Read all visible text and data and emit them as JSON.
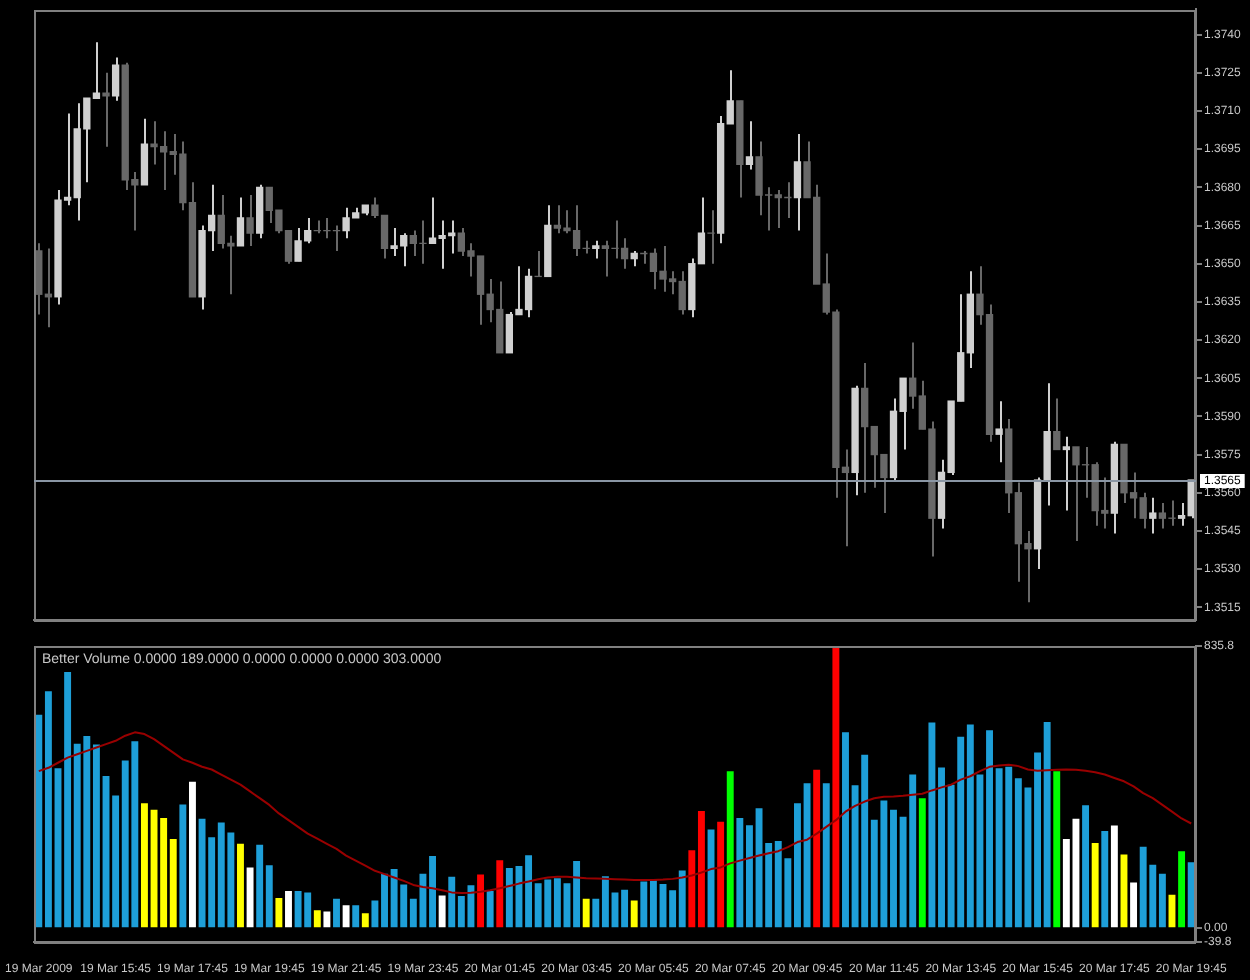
{
  "chart_data": [
    {
      "type": "candlestick",
      "categories": [
        null,
        null,
        null,
        null,
        null,
        null,
        null,
        null,
        null,
        null,
        null,
        null,
        null,
        null,
        null,
        null,
        null,
        null,
        null,
        null,
        null,
        null,
        null,
        null,
        null,
        null,
        null,
        null,
        null,
        null,
        null,
        null,
        null,
        null,
        null,
        null,
        null,
        null,
        null,
        null,
        null,
        null,
        null,
        null,
        null,
        null,
        null,
        null,
        null,
        null,
        null,
        null,
        null,
        null,
        null,
        null,
        null,
        null,
        null,
        null,
        null,
        null,
        null,
        null,
        null,
        null,
        null,
        null,
        null,
        null,
        null,
        null,
        null,
        null,
        null,
        null,
        null,
        null,
        null,
        null,
        null,
        null,
        null,
        null,
        null,
        null,
        null,
        null,
        null,
        null,
        null,
        null,
        null,
        null,
        null,
        null,
        null,
        null,
        null,
        null,
        null,
        null,
        null,
        null,
        null,
        null,
        null,
        null,
        null,
        null,
        null,
        null,
        null,
        null,
        null,
        null,
        null,
        null,
        null,
        null,
        null
      ],
      "colors": [
        "#686868",
        "#686868",
        "#d0d0d0",
        "#d0d0d0",
        "#d0d0d0",
        "#d0d0d0",
        "#d0d0d0",
        "#686868",
        "#d0d0d0",
        "#686868",
        "#686868",
        "#d0d0d0",
        "#686868",
        "#686868",
        "#686868",
        "#686868",
        "#686868",
        "#d0d0d0",
        "#d0d0d0",
        "#686868",
        "#686868",
        "#d0d0d0",
        "#686868",
        "#d0d0d0",
        "#686868",
        "#686868",
        "#686868",
        "#d0d0d0",
        "#d0d0d0",
        "#686868",
        "#686868",
        "#686868",
        "#d0d0d0",
        "#d0d0d0",
        "#d0d0d0",
        "#686868",
        "#686868",
        "#d0d0d0",
        "#d0d0d0",
        "#686868",
        "#686868",
        "#d0d0d0",
        "#d0d0d0",
        "#d0d0d0",
        "#686868",
        "#686868",
        "#686868",
        "#686868",
        "#686868",
        "#d0d0d0",
        "#d0d0d0",
        "#d0d0d0",
        "#686868",
        "#d0d0d0",
        "#686868",
        "#686868",
        "#686868",
        "#686868",
        "#d0d0d0",
        "#686868",
        "#686868",
        "#686868",
        "#d0d0d0",
        "#686868",
        "#686868",
        "#686868",
        "#686868",
        "#686868",
        "#d0d0d0",
        "#d0d0d0",
        "#686868",
        "#d0d0d0",
        "#d0d0d0",
        "#686868",
        "#d0d0d0",
        "#686868",
        "#686868",
        "#686868",
        "#686868",
        "#d0d0d0",
        "#686868",
        "#686868",
        "#686868",
        "#686868",
        "#686868",
        "#d0d0d0",
        "#686868",
        "#686868",
        "#686868",
        "#d0d0d0",
        "#d0d0d0",
        "#686868",
        "#686868",
        "#686868",
        "#d0d0d0",
        "#d0d0d0",
        "#d0d0d0",
        "#d0d0d0",
        "#686868",
        "#686868",
        "#d0d0d0",
        "#686868",
        "#686868",
        "#686868",
        "#d0d0d0",
        "#d0d0d0",
        "#686868",
        "#d0d0d0",
        "#686868",
        "#686868",
        "#686868",
        "#686868",
        "#d0d0d0",
        "#686868",
        "#686868",
        "#686868",
        "#d0d0d0",
        "#686868",
        "#686868",
        "#d0d0d0",
        "#d0d0d0"
      ],
      "ohlc": [
        [
          1.3655,
          1.3658,
          1.363,
          1.3638
        ],
        [
          1.3638,
          1.3656,
          1.3625,
          1.3637
        ],
        [
          1.3637,
          1.3679,
          1.3634,
          1.3675
        ],
        [
          1.3675,
          1.3709,
          1.3673,
          1.3676
        ],
        [
          1.3676,
          1.3713,
          1.3667,
          1.3703
        ],
        [
          1.3703,
          1.3715,
          1.3682,
          1.3715
        ],
        [
          1.3715,
          1.3737,
          1.3715,
          1.3717
        ],
        [
          1.3717,
          1.3725,
          1.3696,
          1.3716
        ],
        [
          1.3716,
          1.3731,
          1.3714,
          1.3728
        ],
        [
          1.3728,
          1.3729,
          1.3679,
          1.3683
        ],
        [
          1.3683,
          1.3686,
          1.3663,
          1.3681
        ],
        [
          1.3681,
          1.3707,
          1.3681,
          1.3697
        ],
        [
          1.3697,
          1.3706,
          1.3689,
          1.3696
        ],
        [
          1.3696,
          1.3702,
          1.3679,
          1.3694
        ],
        [
          1.3694,
          1.3701,
          1.3685,
          1.3693
        ],
        [
          1.3693,
          1.3698,
          1.3671,
          1.3674
        ],
        [
          1.3674,
          1.3682,
          1.3637,
          1.3637
        ],
        [
          1.3637,
          1.3665,
          1.3632,
          1.3663
        ],
        [
          1.3663,
          1.3681,
          1.3655,
          1.3669
        ],
        [
          1.3669,
          1.3677,
          1.3656,
          1.3658
        ],
        [
          1.3658,
          1.3661,
          1.3638,
          1.3657
        ],
        [
          1.3657,
          1.3676,
          1.3657,
          1.3668
        ],
        [
          1.3668,
          1.3677,
          1.3657,
          1.3662
        ],
        [
          1.3662,
          1.3681,
          1.366,
          1.368
        ],
        [
          1.368,
          1.368,
          1.3666,
          1.3671
        ],
        [
          1.3671,
          1.3671,
          1.3662,
          1.3663
        ],
        [
          1.3663,
          1.3663,
          1.365,
          1.3651
        ],
        [
          1.3651,
          1.3664,
          1.3651,
          1.3659
        ],
        [
          1.3659,
          1.3668,
          1.3658,
          1.3663
        ],
        [
          1.3663,
          1.3667,
          1.3662,
          1.3663
        ],
        [
          1.3663,
          1.3668,
          1.366,
          1.3663
        ],
        [
          1.3663,
          1.3665,
          1.3655,
          1.3663
        ],
        [
          1.3663,
          1.3672,
          1.366,
          1.3668
        ],
        [
          1.3668,
          1.3672,
          1.3668,
          1.367
        ],
        [
          1.367,
          1.3673,
          1.3669,
          1.3673
        ],
        [
          1.3673,
          1.3676,
          1.3668,
          1.3669
        ],
        [
          1.3669,
          1.3669,
          1.3652,
          1.3656
        ],
        [
          1.3656,
          1.3664,
          1.3653,
          1.3657
        ],
        [
          1.3657,
          1.3662,
          1.3649,
          1.3661
        ],
        [
          1.3661,
          1.3663,
          1.3653,
          1.3658
        ],
        [
          1.3658,
          1.3667,
          1.365,
          1.3658
        ],
        [
          1.3658,
          1.3676,
          1.3658,
          1.366
        ],
        [
          1.366,
          1.3667,
          1.3648,
          1.3661
        ],
        [
          1.3661,
          1.3667,
          1.3654,
          1.3662
        ],
        [
          1.3662,
          1.3664,
          1.3653,
          1.3655
        ],
        [
          1.3655,
          1.3658,
          1.3645,
          1.3653
        ],
        [
          1.3653,
          1.3653,
          1.3626,
          1.3638
        ],
        [
          1.3638,
          1.3644,
          1.3627,
          1.3632
        ],
        [
          1.3632,
          1.3643,
          1.3615,
          1.3615
        ],
        [
          1.3615,
          1.3631,
          1.3615,
          1.363
        ],
        [
          1.363,
          1.3649,
          1.363,
          1.3632
        ],
        [
          1.3632,
          1.3648,
          1.3629,
          1.3645
        ],
        [
          1.3645,
          1.3655,
          1.3645,
          1.3645
        ],
        [
          1.3645,
          1.3673,
          1.3645,
          1.3665
        ],
        [
          1.3665,
          1.3673,
          1.3662,
          1.3664
        ],
        [
          1.3664,
          1.3671,
          1.3662,
          1.3663
        ],
        [
          1.3663,
          1.3673,
          1.3653,
          1.3656
        ],
        [
          1.3656,
          1.3659,
          1.3654,
          1.3656
        ],
        [
          1.3656,
          1.3659,
          1.3652,
          1.3657
        ],
        [
          1.3657,
          1.3659,
          1.3645,
          1.3656
        ],
        [
          1.3656,
          1.3667,
          1.3652,
          1.3656
        ],
        [
          1.3656,
          1.366,
          1.3648,
          1.3652
        ],
        [
          1.3652,
          1.3655,
          1.3649,
          1.3654
        ],
        [
          1.3654,
          1.3655,
          1.365,
          1.3654
        ],
        [
          1.3654,
          1.3656,
          1.364,
          1.3647
        ],
        [
          1.3647,
          1.3657,
          1.3639,
          1.3644
        ],
        [
          1.3644,
          1.3647,
          1.3638,
          1.3643
        ],
        [
          1.3643,
          1.3647,
          1.363,
          1.3632
        ],
        [
          1.3632,
          1.3652,
          1.3629,
          1.365
        ],
        [
          1.365,
          1.3676,
          1.365,
          1.3662
        ],
        [
          1.3662,
          1.3671,
          1.365,
          1.3662
        ],
        [
          1.3662,
          1.3708,
          1.3658,
          1.3705
        ],
        [
          1.3705,
          1.3726,
          1.3705,
          1.3714
        ],
        [
          1.3714,
          1.3714,
          1.3676,
          1.3689
        ],
        [
          1.3689,
          1.3706,
          1.3687,
          1.3692
        ],
        [
          1.3692,
          1.3698,
          1.3669,
          1.3677
        ],
        [
          1.3677,
          1.368,
          1.3663,
          1.3677
        ],
        [
          1.3677,
          1.3679,
          1.3664,
          1.3676
        ],
        [
          1.3676,
          1.3682,
          1.3668,
          1.3676
        ],
        [
          1.3676,
          1.3701,
          1.3663,
          1.369
        ],
        [
          1.369,
          1.3698,
          1.3676,
          1.3676
        ],
        [
          1.3676,
          1.3681,
          1.3642,
          1.3642
        ],
        [
          1.3642,
          1.3654,
          1.363,
          1.3631
        ],
        [
          1.3631,
          1.3632,
          1.3558,
          1.357
        ],
        [
          1.357,
          1.3577,
          1.3539,
          1.3568
        ],
        [
          1.3568,
          1.3602,
          1.3559,
          1.3601
        ],
        [
          1.3601,
          1.3611,
          1.356,
          1.3586
        ],
        [
          1.3586,
          1.3586,
          1.3562,
          1.3575
        ],
        [
          1.3575,
          1.3575,
          1.3552,
          1.3566
        ],
        [
          1.3566,
          1.3597,
          1.3565,
          1.3592
        ],
        [
          1.3592,
          1.3605,
          1.3577,
          1.3605
        ],
        [
          1.3605,
          1.3619,
          1.3593,
          1.3598
        ],
        [
          1.3598,
          1.3604,
          1.3585,
          1.3585
        ],
        [
          1.3585,
          1.3588,
          1.3535,
          1.355
        ],
        [
          1.355,
          1.3573,
          1.3546,
          1.3568
        ],
        [
          1.3568,
          1.3596,
          1.3567,
          1.3596
        ],
        [
          1.3596,
          1.3638,
          1.3596,
          1.3615
        ],
        [
          1.3615,
          1.3647,
          1.3609,
          1.3638
        ],
        [
          1.3638,
          1.3649,
          1.3626,
          1.363
        ],
        [
          1.363,
          1.3634,
          1.358,
          1.3583
        ],
        [
          1.3583,
          1.3596,
          1.3572,
          1.3585
        ],
        [
          1.3585,
          1.3589,
          1.3552,
          1.356
        ],
        [
          1.356,
          1.3564,
          1.3525,
          1.354
        ],
        [
          1.354,
          1.3545,
          1.3517,
          1.3538
        ],
        [
          1.3538,
          1.3566,
          1.353,
          1.3565
        ],
        [
          1.3565,
          1.3603,
          1.3555,
          1.3584
        ],
        [
          1.3584,
          1.3597,
          1.3577,
          1.3577
        ],
        [
          1.3577,
          1.3582,
          1.3553,
          1.3578
        ],
        [
          1.3578,
          1.3578,
          1.3541,
          1.3571
        ],
        [
          1.3571,
          1.3578,
          1.3558,
          1.3571
        ],
        [
          1.3571,
          1.3572,
          1.3547,
          1.3553
        ],
        [
          1.3553,
          1.3566,
          1.3546,
          1.3552
        ],
        [
          1.3552,
          1.358,
          1.3544,
          1.3579
        ],
        [
          1.3579,
          1.3579,
          1.3556,
          1.356
        ],
        [
          1.356,
          1.3568,
          1.355,
          1.3558
        ],
        [
          1.3558,
          1.356,
          1.3546,
          1.355
        ],
        [
          1.355,
          1.3558,
          1.3544,
          1.3552
        ],
        [
          1.3552,
          1.3556,
          1.3546,
          1.355
        ],
        [
          1.355,
          1.3557,
          1.3547,
          1.355
        ],
        [
          1.355,
          1.3556,
          1.3547,
          1.3551
        ],
        [
          1.3551,
          1.3565,
          1.355,
          1.3565
        ]
      ],
      "ylim": [
        1.351,
        1.375
      ],
      "yticks": [
        {
          "value": 1.3515,
          "label": "1.3515"
        },
        {
          "value": 1.353,
          "label": "1.3530"
        },
        {
          "value": 1.3545,
          "label": "1.3545"
        },
        {
          "value": 1.356,
          "label": "1.3560"
        },
        {
          "value": 1.3575,
          "label": "1.3575"
        },
        {
          "value": 1.359,
          "label": "1.3590"
        },
        {
          "value": 1.3605,
          "label": "1.3605"
        },
        {
          "value": 1.362,
          "label": "1.3620"
        },
        {
          "value": 1.3635,
          "label": "1.3635"
        },
        {
          "value": 1.365,
          "label": "1.3650"
        },
        {
          "value": 1.3665,
          "label": "1.3665"
        },
        {
          "value": 1.368,
          "label": "1.3680"
        },
        {
          "value": 1.3695,
          "label": "1.3695"
        },
        {
          "value": 1.371,
          "label": "1.3710"
        },
        {
          "value": 1.3725,
          "label": "1.3725"
        },
        {
          "value": 1.374,
          "label": "1.3740"
        }
      ],
      "ref_lines": [
        {
          "axis": "y",
          "value": 1.3565,
          "label": "1.3565",
          "color": "#8a96a4"
        }
      ],
      "tick_labels": "y"
    },
    {
      "type": "bar",
      "title": "Better Volume 0.0000 189.0000 0.0000 0.0000 0.0000 303.0000",
      "categories": [
        "19 Mar 2009",
        null,
        null,
        null,
        null,
        null,
        null,
        null,
        "19 Mar 15:45",
        null,
        null,
        null,
        null,
        null,
        null,
        null,
        "19 Mar 17:45",
        null,
        null,
        null,
        null,
        null,
        null,
        null,
        "19 Mar 19:45",
        null,
        null,
        null,
        null,
        null,
        null,
        null,
        "19 Mar 21:45",
        null,
        null,
        null,
        null,
        null,
        null,
        null,
        "19 Mar 23:45",
        null,
        null,
        null,
        null,
        null,
        null,
        null,
        "20 Mar 01:45",
        null,
        null,
        null,
        null,
        null,
        null,
        null,
        "20 Mar 03:45",
        null,
        null,
        null,
        null,
        null,
        null,
        null,
        "20 Mar 05:45",
        null,
        null,
        null,
        null,
        null,
        null,
        null,
        "20 Mar 07:45",
        null,
        null,
        null,
        null,
        null,
        null,
        null,
        "20 Mar 09:45",
        null,
        null,
        null,
        null,
        null,
        null,
        null,
        "20 Mar 11:45",
        null,
        null,
        null,
        null,
        null,
        null,
        null,
        "20 Mar 13:45",
        null,
        null,
        null,
        null,
        null,
        null,
        null,
        "20 Mar 15:45",
        null,
        null,
        null,
        null,
        null,
        null,
        null,
        "20 Mar 17:45",
        null,
        null,
        null,
        null,
        null,
        null,
        null,
        "20 Mar 19:45"
      ],
      "series": [
        {
          "type": "bar",
          "values": [
            632,
            702,
            474,
            759,
            546,
            569,
            544,
            451,
            393,
            497,
            554,
            370,
            351,
            326,
            264,
            366,
            434,
            324,
            269,
            313,
            283,
            250,
            180,
            247,
            186,
            89,
            110,
            110,
            106,
            53,
            49,
            87,
            68,
            68,
            44,
            82,
            161,
            175,
            129,
            87,
            161,
            214,
            97,
            152,
            95,
            127,
            159,
            110,
            201,
            178,
            184,
            216,
            133,
            144,
            148,
            133,
            199,
            87,
            87,
            154,
            106,
            114,
            82,
            138,
            142,
            131,
            112,
            171,
            231,
            347,
            292,
            315,
            465,
            326,
            305,
            355,
            252,
            258,
            207,
            370,
            429,
            469,
            429,
            830,
            580,
            423,
            514,
            321,
            378,
            351,
            330,
            455,
            385,
            609,
            476,
            425,
            567,
            603,
            455,
            586,
            474,
            478,
            444,
            417,
            520,
            611,
            465,
            264,
            324,
            364,
            252,
            288,
            304,
            218,
            135,
            241,
            188,
            161,
            99,
            228,
            195
          ],
          "colors": [
            "#1e9fd8",
            "#1e9fd8",
            "#1e9fd8",
            "#1e9fd8",
            "#1e9fd8",
            "#1e9fd8",
            "#1e9fd8",
            "#1e9fd8",
            "#1e9fd8",
            "#1e9fd8",
            "#1e9fd8",
            "#ffff00",
            "#ffff00",
            "#ffff00",
            "#ffff00",
            "#1e9fd8",
            "#ffffff",
            "#1e9fd8",
            "#1e9fd8",
            "#1e9fd8",
            "#1e9fd8",
            "#ffff00",
            "#ffffff",
            "#1e9fd8",
            "#1e9fd8",
            "#ffff00",
            "#ffffff",
            "#1e9fd8",
            "#1e9fd8",
            "#ffff00",
            "#ffffff",
            "#1e9fd8",
            "#ffffff",
            "#1e9fd8",
            "#ffff00",
            "#1e9fd8",
            "#1e9fd8",
            "#1e9fd8",
            "#1e9fd8",
            "#1e9fd8",
            "#1e9fd8",
            "#1e9fd8",
            "#ffffff",
            "#1e9fd8",
            "#1e9fd8",
            "#1e9fd8",
            "#ff0000",
            "#1e9fd8",
            "#ff0000",
            "#1e9fd8",
            "#1e9fd8",
            "#1e9fd8",
            "#1e9fd8",
            "#1e9fd8",
            "#1e9fd8",
            "#1e9fd8",
            "#1e9fd8",
            "#ffff00",
            "#1e9fd8",
            "#1e9fd8",
            "#1e9fd8",
            "#1e9fd8",
            "#ffff00",
            "#1e9fd8",
            "#1e9fd8",
            "#1e9fd8",
            "#1e9fd8",
            "#1e9fd8",
            "#ff0000",
            "#ff0000",
            "#1e9fd8",
            "#ff0000",
            "#00ff00",
            "#1e9fd8",
            "#1e9fd8",
            "#1e9fd8",
            "#1e9fd8",
            "#1e9fd8",
            "#1e9fd8",
            "#1e9fd8",
            "#1e9fd8",
            "#ff0000",
            "#1e9fd8",
            "#ff0000",
            "#1e9fd8",
            "#1e9fd8",
            "#1e9fd8",
            "#1e9fd8",
            "#1e9fd8",
            "#1e9fd8",
            "#1e9fd8",
            "#1e9fd8",
            "#00ff00",
            "#1e9fd8",
            "#1e9fd8",
            "#1e9fd8",
            "#1e9fd8",
            "#1e9fd8",
            "#1e9fd8",
            "#1e9fd8",
            "#1e9fd8",
            "#1e9fd8",
            "#1e9fd8",
            "#1e9fd8",
            "#1e9fd8",
            "#1e9fd8",
            "#00ff00",
            "#ffffff",
            "#ffffff",
            "#1e9fd8",
            "#ffff00",
            "#1e9fd8",
            "#ffffff",
            "#ffff00",
            "#ffffff",
            "#1e9fd8",
            "#1e9fd8",
            "#1e9fd8",
            "#ffff00",
            "#00ff00",
            "#1e9fd8"
          ]
        },
        {
          "type": "line",
          "color": "#990000",
          "values": [
            465,
            475,
            490,
            505,
            515,
            525,
            535,
            545,
            555,
            570,
            580,
            575,
            560,
            540,
            520,
            500,
            490,
            478,
            470,
            455,
            440,
            425,
            405,
            385,
            365,
            340,
            320,
            300,
            280,
            265,
            250,
            235,
            215,
            200,
            185,
            170,
            160,
            150,
            140,
            128,
            122,
            118,
            112,
            106,
            104,
            105,
            108,
            112,
            118,
            125,
            132,
            138,
            145,
            150,
            152,
            152,
            150,
            148,
            147,
            146,
            145,
            144,
            143,
            143,
            143,
            144,
            146,
            150,
            156,
            165,
            175,
            180,
            192,
            200,
            208,
            215,
            222,
            228,
            240,
            255,
            262,
            280,
            300,
            320,
            345,
            362,
            375,
            385,
            389,
            390,
            392,
            395,
            398,
            408,
            417,
            425,
            440,
            450,
            465,
            478,
            482,
            484,
            480,
            470,
            466,
            468,
            469,
            470,
            469,
            466,
            462,
            455,
            445,
            435,
            420,
            400,
            385,
            365,
            345,
            325,
            310
          ]
        }
      ],
      "ylim": [
        -39.8,
        835.8
      ],
      "yticks": [
        835.8,
        {
          "value": 0,
          "label": "0.00"
        },
        -39.8
      ]
    }
  ]
}
